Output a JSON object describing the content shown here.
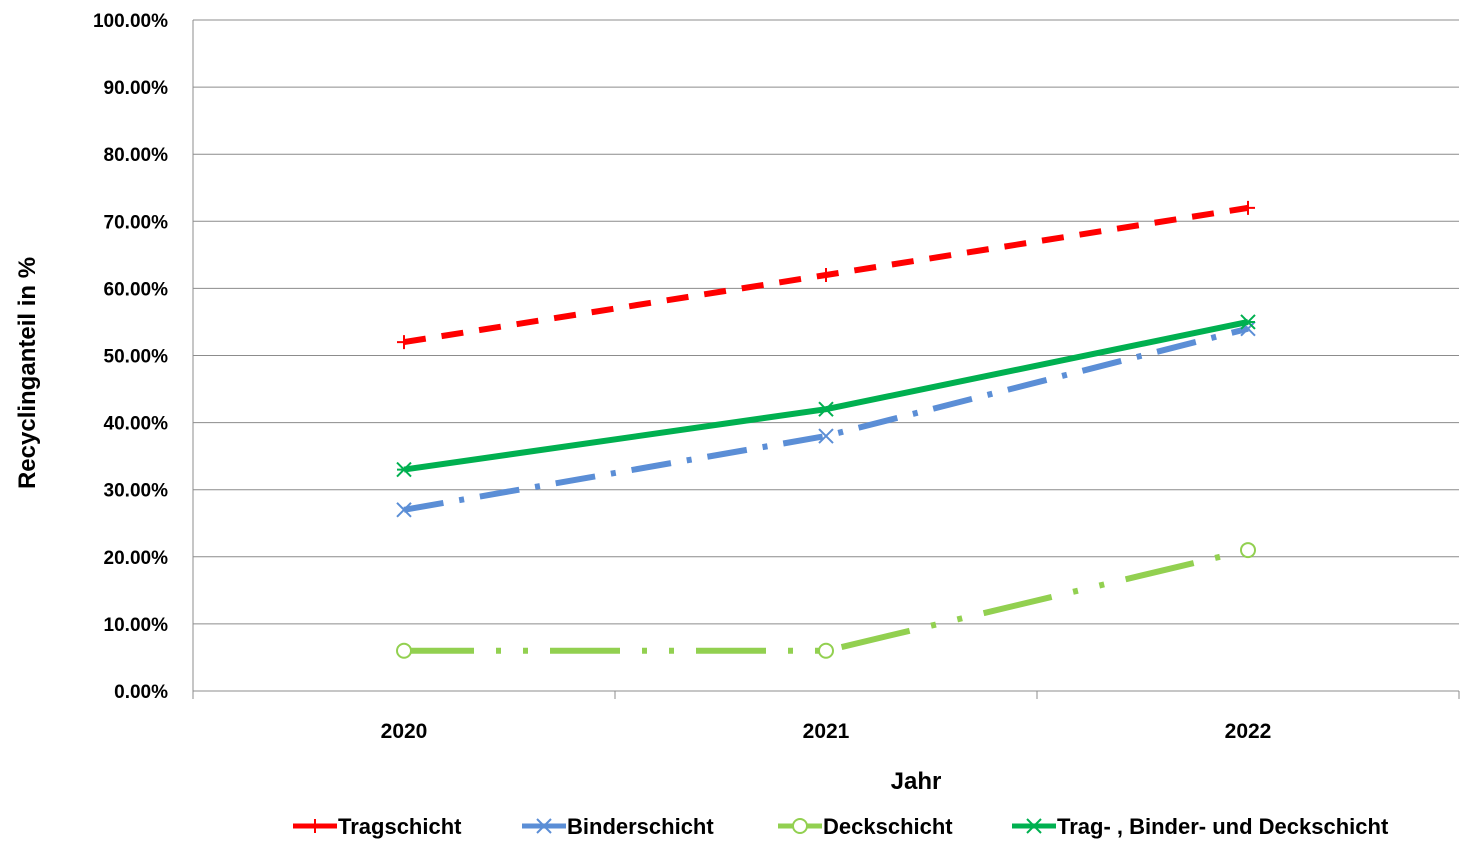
{
  "chart_data": {
    "type": "line",
    "xlabel": "Jahr",
    "ylabel": "Recyclinganteil in %",
    "categories": [
      "2020",
      "2021",
      "2022"
    ],
    "ylim": [
      0,
      100
    ],
    "yticks": [
      0,
      10,
      20,
      30,
      40,
      50,
      60,
      70,
      80,
      90,
      100
    ],
    "ytick_labels": [
      "0.00%",
      "10.00%",
      "20.00%",
      "30.00%",
      "40.00%",
      "50.00%",
      "60.00%",
      "70.00%",
      "80.00%",
      "90.00%",
      "100.00%"
    ],
    "grid": true,
    "legend_position": "bottom",
    "series": [
      {
        "name": "Tragschicht",
        "values": [
          52,
          62,
          72
        ],
        "color": "#ff0000",
        "dash": "dashed",
        "marker": "plus"
      },
      {
        "name": "Binderschicht",
        "values": [
          27,
          38,
          54
        ],
        "color": "#5b8ed6",
        "dash": "dash-dot",
        "marker": "x"
      },
      {
        "name": "Deckschicht",
        "values": [
          6,
          6,
          21
        ],
        "color": "#92d050",
        "dash": "dash-dot-dot",
        "marker": "circle"
      },
      {
        "name": "Trag- , Binder- und Deckschicht",
        "values": [
          33,
          42,
          55
        ],
        "color": "#00b050",
        "dash": "solid",
        "marker": "star"
      }
    ]
  }
}
